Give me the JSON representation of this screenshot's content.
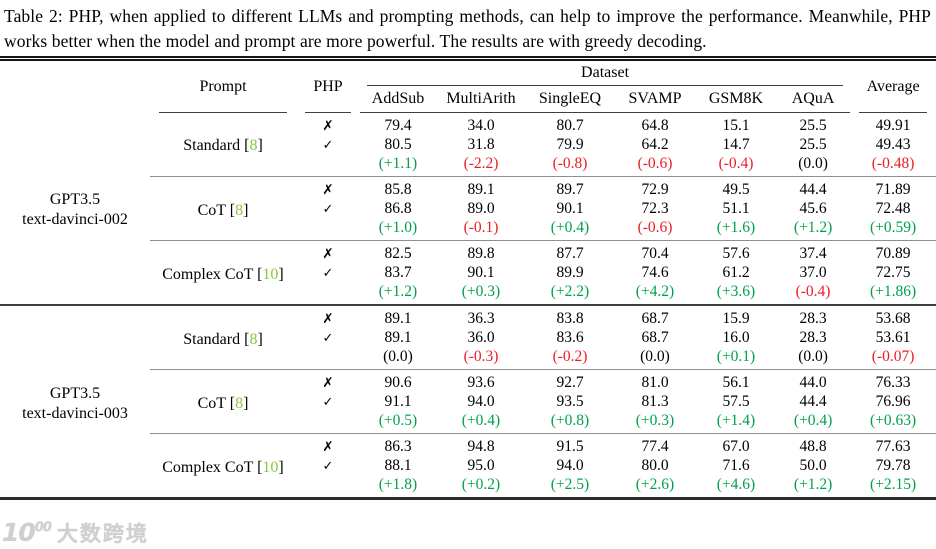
{
  "caption": "Table 2: PHP, when applied to different LLMs and prompting methods, can help to improve the performance. Meanwhile, PHP works better when the model and prompt are more powerful. The results are with greedy decoding.",
  "table": {
    "header": {
      "prompt": "Prompt",
      "php": "PHP",
      "dataset": "Dataset",
      "average": "Average",
      "datasets": [
        "AddSub",
        "MultiArith",
        "SingleEQ",
        "SVAMP",
        "GSM8K",
        "AQuA"
      ]
    },
    "php_marks": {
      "no": "✗",
      "yes": "✓"
    },
    "colors": {
      "green": "#00a14b",
      "red": "#ed1c24",
      "citation": "#8cc63e"
    },
    "groups": [
      {
        "model_line1": "GPT3.5",
        "model_line2": "text-davinci-002",
        "blocks": [
          {
            "prompt": "Standard",
            "cite": "8",
            "rows": {
              "no": [
                "79.4",
                "34.0",
                "80.7",
                "64.8",
                "15.1",
                "25.5",
                "49.91"
              ],
              "yes": [
                "80.5",
                "31.8",
                "79.9",
                "64.2",
                "14.7",
                "25.5",
                "49.43"
              ],
              "delta": [
                "(+1.1)",
                "(-2.2)",
                "(-0.8)",
                "(-0.6)",
                "(-0.4)",
                "(0.0)",
                "(-0.48)"
              ]
            }
          },
          {
            "prompt": "CoT",
            "cite": "8",
            "rows": {
              "no": [
                "85.8",
                "89.1",
                "89.7",
                "72.9",
                "49.5",
                "44.4",
                "71.89"
              ],
              "yes": [
                "86.8",
                "89.0",
                "90.1",
                "72.3",
                "51.1",
                "45.6",
                "72.48"
              ],
              "delta": [
                "(+1.0)",
                "(-0.1)",
                "(+0.4)",
                "(-0.6)",
                "(+1.6)",
                "(+1.2)",
                "(+0.59)"
              ]
            }
          },
          {
            "prompt": "Complex CoT",
            "cite": "10",
            "rows": {
              "no": [
                "82.5",
                "89.8",
                "87.7",
                "70.4",
                "57.6",
                "37.4",
                "70.89"
              ],
              "yes": [
                "83.7",
                "90.1",
                "89.9",
                "74.6",
                "61.2",
                "37.0",
                "72.75"
              ],
              "delta": [
                "(+1.2)",
                "(+0.3)",
                "(+2.2)",
                "(+4.2)",
                "(+3.6)",
                "(-0.4)",
                "(+1.86)"
              ]
            }
          }
        ]
      },
      {
        "model_line1": "GPT3.5",
        "model_line2": "text-davinci-003",
        "blocks": [
          {
            "prompt": "Standard",
            "cite": "8",
            "rows": {
              "no": [
                "89.1",
                "36.3",
                "83.8",
                "68.7",
                "15.9",
                "28.3",
                "53.68"
              ],
              "yes": [
                "89.1",
                "36.0",
                "83.6",
                "68.7",
                "16.0",
                "28.3",
                "53.61"
              ],
              "delta": [
                "(0.0)",
                "(-0.3)",
                "(-0.2)",
                "(0.0)",
                "(+0.1)",
                "(0.0)",
                "(-0.07)"
              ]
            }
          },
          {
            "prompt": "CoT",
            "cite": "8",
            "rows": {
              "no": [
                "90.6",
                "93.6",
                "92.7",
                "81.0",
                "56.1",
                "44.0",
                "76.33"
              ],
              "yes": [
                "91.1",
                "94.0",
                "93.5",
                "81.3",
                "57.5",
                "44.4",
                "76.96"
              ],
              "delta": [
                "(+0.5)",
                "(+0.4)",
                "(+0.8)",
                "(+0.3)",
                "(+1.4)",
                "(+0.4)",
                "(+0.63)"
              ]
            }
          },
          {
            "prompt": "Complex CoT",
            "cite": "10",
            "rows": {
              "no": [
                "86.3",
                "94.8",
                "91.5",
                "77.4",
                "67.0",
                "48.8",
                "77.63"
              ],
              "yes": [
                "88.1",
                "95.0",
                "94.0",
                "80.0",
                "71.6",
                "50.0",
                "79.78"
              ],
              "delta": [
                "(+1.8)",
                "(+0.2)",
                "(+2.5)",
                "(+2.6)",
                "(+4.6)",
                "(+1.2)",
                "(+2.15)"
              ]
            }
          }
        ]
      }
    ]
  },
  "watermark": {
    "logo_main": "10",
    "logo_sup": "00",
    "text": "大数跨境"
  }
}
